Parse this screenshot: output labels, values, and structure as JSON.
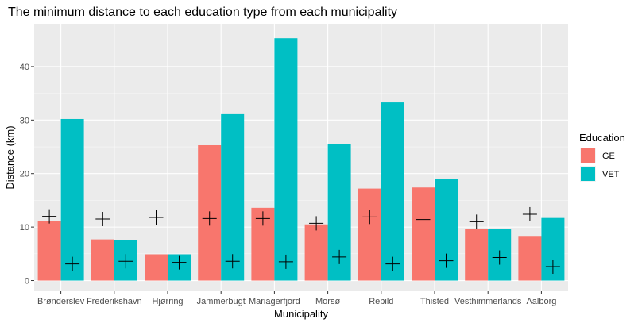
{
  "chart_data": {
    "type": "bar",
    "title": "The minimum distance to each education type from each municipality",
    "xlabel": "Municipality",
    "ylabel": "Distance (km)",
    "ylim": [
      -2,
      48
    ],
    "yticks": [
      0,
      10,
      20,
      30,
      40
    ],
    "grid": true,
    "legend": {
      "title": "Education",
      "placement": "right"
    },
    "categories": [
      "Brønderslev",
      "Frederikshavn",
      "Hjørring",
      "Jammerbugt",
      "Mariagerfjord",
      "Morsø",
      "Rebild",
      "Thisted",
      "Vesthimmerlands",
      "Aalborg"
    ],
    "series": [
      {
        "name": "GE",
        "color": "#F8766D",
        "values": [
          11.2,
          7.7,
          4.9,
          25.3,
          13.6,
          10.5,
          17.2,
          17.4,
          9.6,
          8.2
        ]
      },
      {
        "name": "VET",
        "color": "#00BFC4",
        "values": [
          30.2,
          7.6,
          4.9,
          31.1,
          45.3,
          25.5,
          33.3,
          19.0,
          9.6,
          11.7
        ]
      }
    ],
    "markers": {
      "shape": "plus",
      "series": [
        {
          "for": "GE",
          "values": [
            12.0,
            11.5,
            11.8,
            11.6,
            11.6,
            10.7,
            11.9,
            11.4,
            11.0,
            12.4
          ]
        },
        {
          "for": "VET",
          "values": [
            3.1,
            3.6,
            3.4,
            3.6,
            3.5,
            4.4,
            3.1,
            3.7,
            4.3,
            2.6
          ]
        }
      ]
    }
  }
}
